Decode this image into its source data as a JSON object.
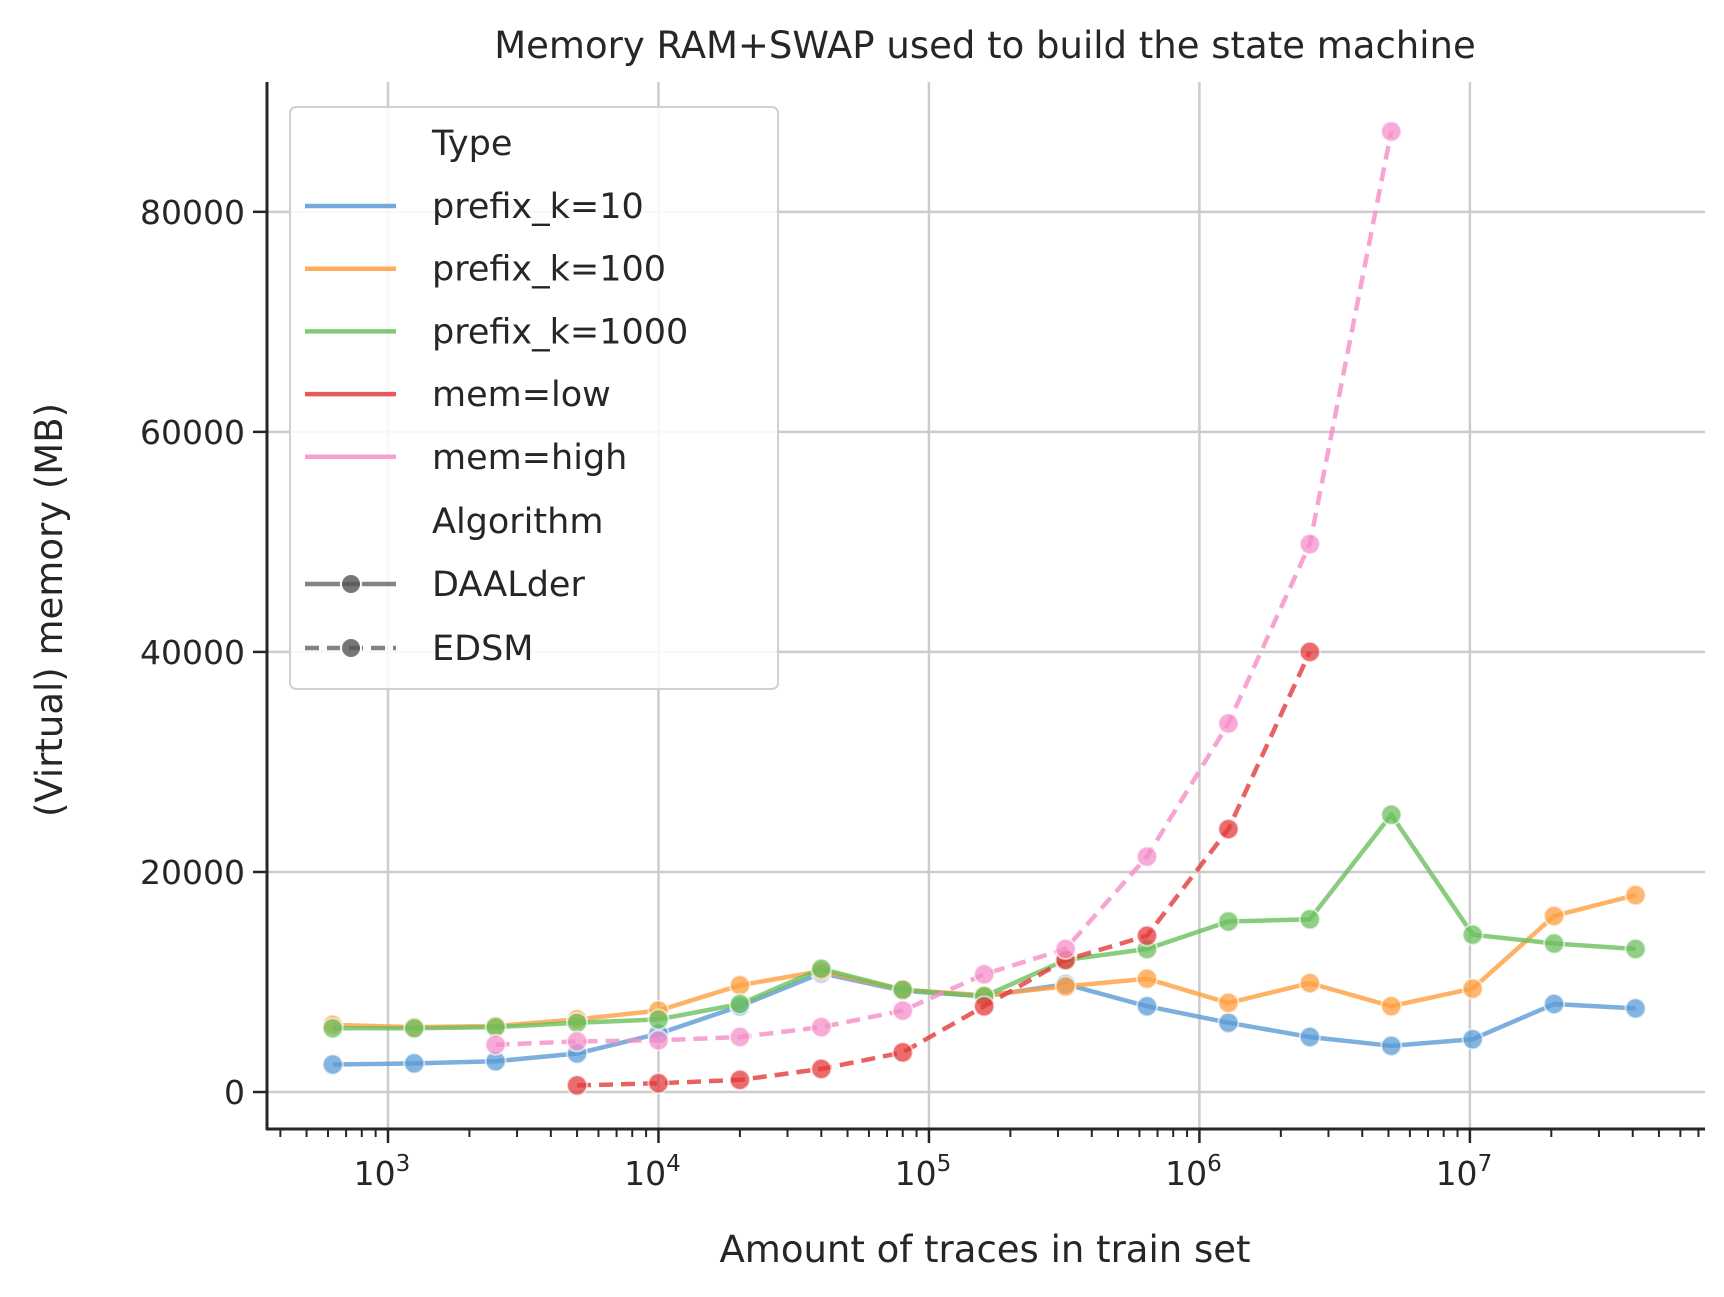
{
  "chart_data": {
    "type": "line",
    "title": "Memory RAM+SWAP used to build the state machine",
    "xlabel": "Amount of traces in train set",
    "ylabel": "(Virtual) memory (MB)",
    "xscale": "log",
    "xlim": [
      357,
      74000000
    ],
    "ylim": [
      -3360,
      91800
    ],
    "grid": true,
    "legend_position": "upper-left",
    "x_ticks": [
      {
        "value": 1000,
        "base": "10",
        "exp": "3"
      },
      {
        "value": 10000,
        "base": "10",
        "exp": "4"
      },
      {
        "value": 100000,
        "base": "10",
        "exp": "5"
      },
      {
        "value": 1000000,
        "base": "10",
        "exp": "6"
      },
      {
        "value": 10000000,
        "base": "10",
        "exp": "7"
      }
    ],
    "y_ticks": [
      "0",
      "20000",
      "40000",
      "60000",
      "80000"
    ],
    "legend": {
      "type_title": "Type",
      "algorithm_title": "Algorithm",
      "algorithms": [
        {
          "name": "DAALder",
          "dash": "solid"
        },
        {
          "name": "EDSM",
          "dash": "dashed"
        }
      ]
    },
    "series": [
      {
        "name": "prefix_k=10",
        "algorithm": "DAALder",
        "color": "#5b9bd5",
        "x": [
          625,
          1250,
          2500,
          5000,
          10000,
          20000,
          40000,
          80000,
          160000,
          320000,
          640000,
          1280000,
          2560000,
          5120000,
          10240000,
          20480000,
          40960000
        ],
        "y": [
          2500,
          2600,
          2800,
          3500,
          5300,
          7800,
          10800,
          9200,
          8700,
          9800,
          7800,
          6300,
          5000,
          4200,
          4800,
          8000,
          7600
        ]
      },
      {
        "name": "prefix_k=100",
        "algorithm": "DAALder",
        "color": "#ff9f40",
        "x": [
          625,
          1250,
          2500,
          5000,
          10000,
          20000,
          40000,
          80000,
          160000,
          320000,
          640000,
          1280000,
          2560000,
          5120000,
          10240000,
          20480000,
          40960000
        ],
        "y": [
          6100,
          5900,
          6000,
          6600,
          7400,
          9700,
          11000,
          9300,
          8800,
          9600,
          10300,
          8100,
          9900,
          7800,
          9400,
          16000,
          17900
        ]
      },
      {
        "name": "prefix_k=1000",
        "algorithm": "DAALder",
        "color": "#6cbf5e",
        "x": [
          625,
          1250,
          2500,
          5000,
          10000,
          20000,
          40000,
          80000,
          160000,
          320000,
          640000,
          1280000,
          2560000,
          5120000,
          10240000,
          20480000,
          40960000
        ],
        "y": [
          5800,
          5800,
          5900,
          6300,
          6600,
          8000,
          11200,
          9300,
          8700,
          12000,
          13000,
          15500,
          15700,
          25200,
          14300,
          13500,
          13000
        ]
      },
      {
        "name": "mem=low",
        "algorithm": "EDSM",
        "color": "#e33b3b",
        "x": [
          5000,
          10000,
          20000,
          40000,
          80000,
          160000,
          320000,
          640000,
          1280000,
          2560000
        ],
        "y": [
          600,
          800,
          1100,
          2100,
          3600,
          7800,
          12000,
          14200,
          23900,
          40000
        ]
      },
      {
        "name": "mem=high",
        "algorithm": "EDSM",
        "color": "#f48fc8",
        "x": [
          2500,
          5000,
          10000,
          20000,
          40000,
          80000,
          160000,
          320000,
          640000,
          1280000,
          2560000,
          5120000
        ],
        "y": [
          4300,
          4600,
          4700,
          5000,
          5900,
          7400,
          10700,
          13000,
          21400,
          33500,
          49800,
          87300
        ]
      }
    ]
  }
}
